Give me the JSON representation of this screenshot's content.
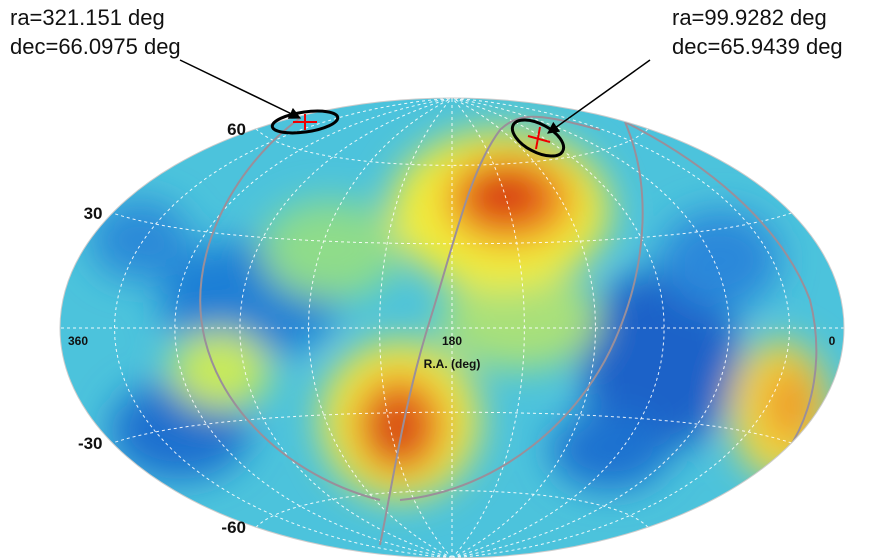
{
  "annotations": [
    {
      "lines": [
        "ra=321.151 deg",
        "dec=66.0975 deg"
      ]
    },
    {
      "lines": [
        "ra=99.9282 deg",
        "dec=65.9439 deg"
      ]
    }
  ],
  "dec_labels": [
    60,
    30,
    -30,
    -60
  ],
  "ra_labels": [
    360,
    180,
    0
  ],
  "ra_axis_label": "R.A. (deg)"
}
